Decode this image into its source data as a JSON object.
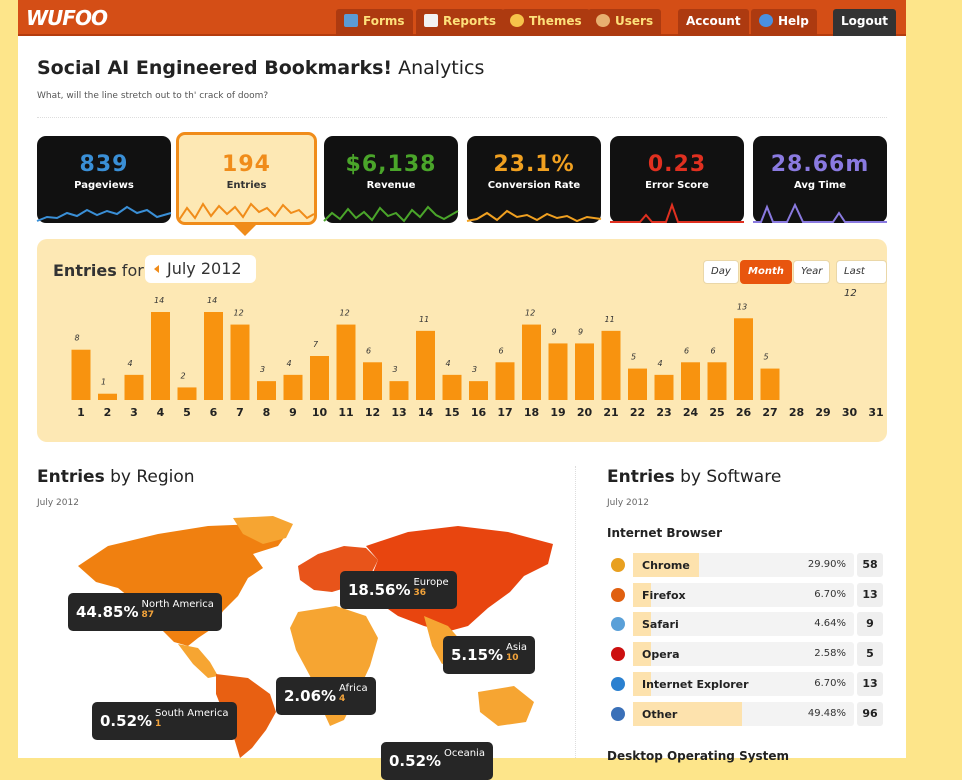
{
  "app": {
    "logo": "WUFOO"
  },
  "nav": {
    "forms": "Forms",
    "reports": "Reports",
    "themes": "Themes",
    "users": "Users",
    "account": "Account",
    "help": "Help",
    "logout": "Logout"
  },
  "header": {
    "title_bold": "Social AI Engineered Bookmarks!",
    "title_rest": " Analytics",
    "subtitle": "What, will the line stretch out to th' crack of doom?"
  },
  "stats": [
    {
      "value": "839",
      "label": "Pageviews",
      "color": "#3a8fd6"
    },
    {
      "value": "194",
      "label": "Entries",
      "color": "#f08c1a"
    },
    {
      "value": "$6,138",
      "label": "Revenue",
      "color": "#4aa52a"
    },
    {
      "value": "23.1%",
      "label": "Conversion Rate",
      "color": "#f0a020"
    },
    {
      "value": "0.23",
      "label": "Error Score",
      "color": "#e03020"
    },
    {
      "value": "28.66m",
      "label": "Avg Time",
      "color": "#8a7ae0"
    }
  ],
  "entries_chart": {
    "title_bold": "Entries",
    "title_rest": " for",
    "month": "July 2012",
    "ranges": [
      "Day",
      "Month",
      "Year",
      "Last 12"
    ],
    "active_range": "Month"
  },
  "chart_data": {
    "type": "bar",
    "categories": [
      "1",
      "2",
      "3",
      "4",
      "5",
      "6",
      "7",
      "8",
      "9",
      "10",
      "11",
      "12",
      "13",
      "14",
      "15",
      "16",
      "17",
      "18",
      "19",
      "20",
      "21",
      "22",
      "23",
      "24",
      "25",
      "26",
      "27",
      "28",
      "29",
      "30",
      "31"
    ],
    "values": [
      8,
      1,
      4,
      14,
      2,
      14,
      12,
      3,
      4,
      7,
      12,
      6,
      3,
      11,
      4,
      3,
      6,
      12,
      9,
      9,
      11,
      5,
      4,
      6,
      6,
      13,
      5,
      0,
      0,
      0,
      0
    ],
    "title": "Entries for July 2012",
    "ylim": [
      0,
      14
    ],
    "bar_color": "#f8930f"
  },
  "region": {
    "title_bold": "Entries",
    "title_rest": " by Region",
    "date": "July 2012",
    "items": [
      {
        "pct": "44.85%",
        "name": "North America",
        "count": "87"
      },
      {
        "pct": "18.56%",
        "name": "Europe",
        "count": "36"
      },
      {
        "pct": "5.15%",
        "name": "Asia",
        "count": "10"
      },
      {
        "pct": "2.06%",
        "name": "Africa",
        "count": "4"
      },
      {
        "pct": "0.52%",
        "name": "South America",
        "count": "1"
      },
      {
        "pct": "0.52%",
        "name": "Oceania",
        "count": ""
      }
    ]
  },
  "software": {
    "title_bold": "Entries",
    "title_rest": " by Software",
    "date": "July 2012",
    "browser_heading": "Internet Browser",
    "browsers": [
      {
        "name": "Chrome",
        "pct": "29.90%",
        "share": 0.299,
        "count": "58",
        "icon": "chrome-icon",
        "color": "#e8a020"
      },
      {
        "name": "Firefox",
        "pct": "6.70%",
        "share": 0.067,
        "count": "13",
        "icon": "firefox-icon",
        "color": "#e06010"
      },
      {
        "name": "Safari",
        "pct": "4.64%",
        "share": 0.0464,
        "count": "9",
        "icon": "safari-icon",
        "color": "#5aa0d8"
      },
      {
        "name": "Opera",
        "pct": "2.58%",
        "share": 0.0258,
        "count": "5",
        "icon": "opera-icon",
        "color": "#cc1010"
      },
      {
        "name": "Internet Explorer",
        "pct": "6.70%",
        "share": 0.067,
        "count": "13",
        "icon": "ie-icon",
        "color": "#2a80d0"
      },
      {
        "name": "Other",
        "pct": "49.48%",
        "share": 0.4948,
        "count": "96",
        "icon": "globe-icon",
        "color": "#3a70b8"
      }
    ],
    "os_heading": "Desktop Operating System"
  }
}
